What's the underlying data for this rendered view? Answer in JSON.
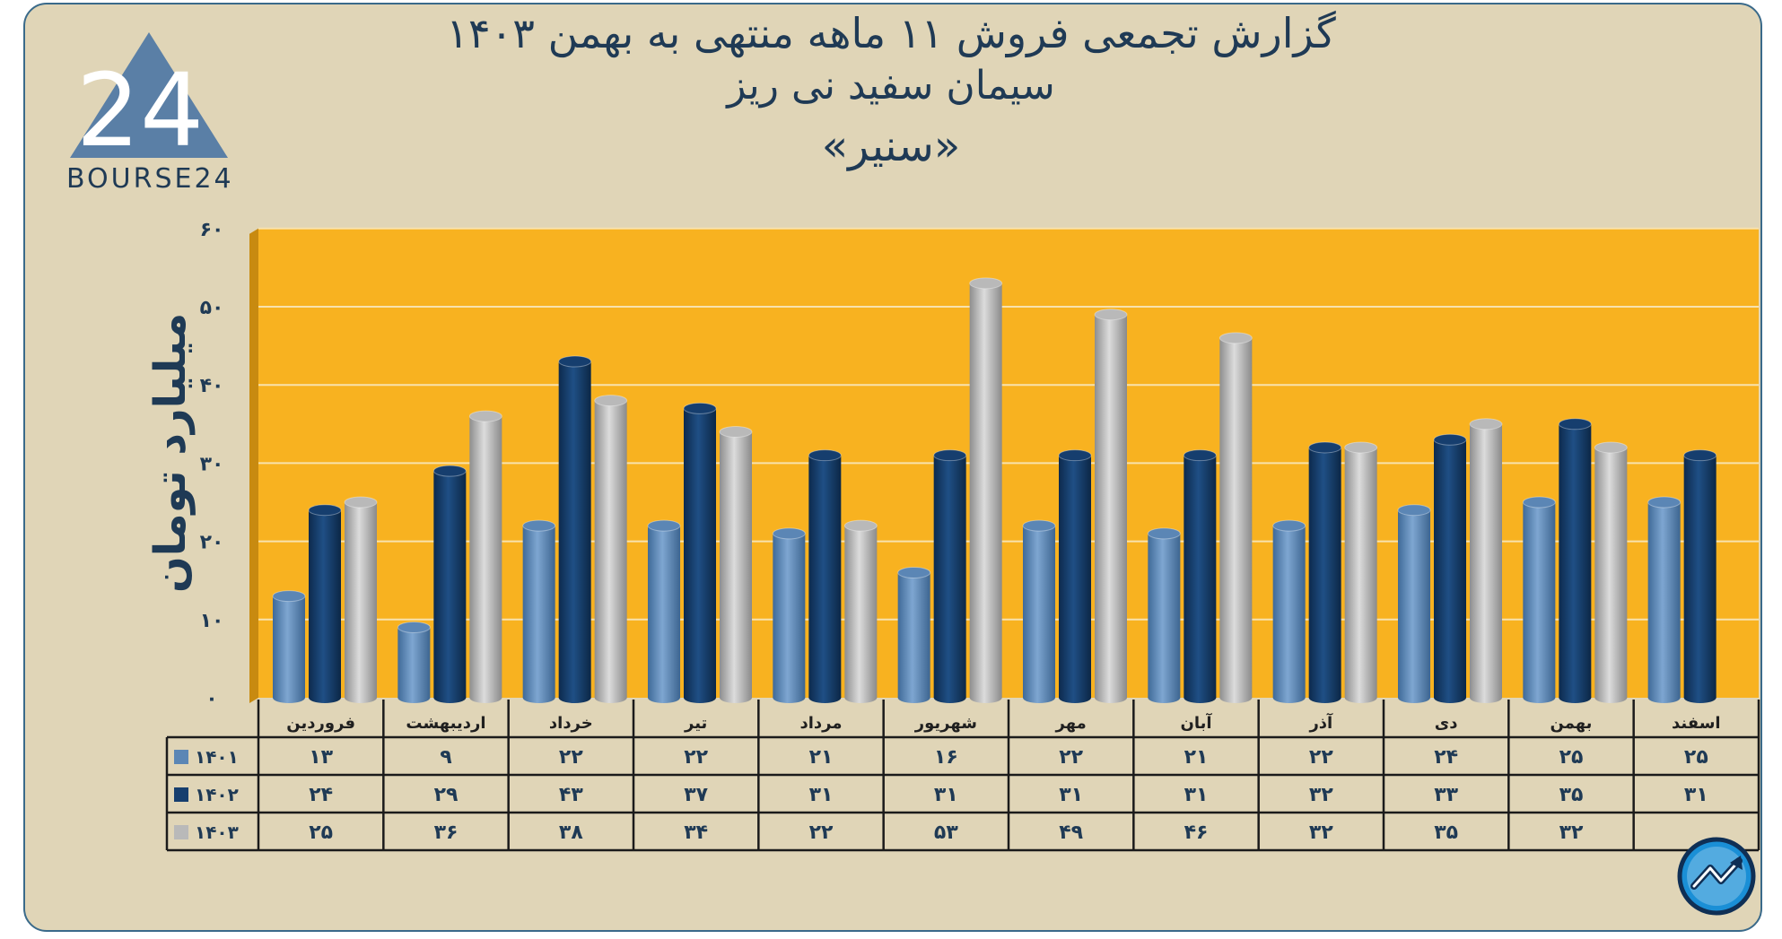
{
  "title": {
    "line1": "گزارش تجمعی فروش ۱۱ ماهه منتهی به بهمن ۱۴۰۳",
    "line2": "سیمان سفید نی ریز",
    "line3": "«سنیر»"
  },
  "logo": {
    "text": "BOURSE24",
    "mark": "24"
  },
  "chart_data": {
    "type": "bar",
    "ylabel": "میلیارد تومان",
    "ylim": [
      0,
      60
    ],
    "yticks": [
      0,
      10,
      20,
      30,
      40,
      50,
      60
    ],
    "ytick_labels": [
      "۰",
      "۱۰",
      "۲۰",
      "۳۰",
      "۴۰",
      "۵۰",
      "۶۰"
    ],
    "categories": [
      "فروردین",
      "اردیبهشت",
      "خرداد",
      "تیر",
      "مرداد",
      "شهریور",
      "مهر",
      "آبان",
      "آذر",
      "دی",
      "بهمن",
      "اسفند"
    ],
    "series": [
      {
        "name": "۱۴۰۱",
        "color": "#5b86b5",
        "values": [
          13,
          9,
          22,
          22,
          21,
          16,
          22,
          21,
          22,
          24,
          25,
          25
        ],
        "labels": [
          "۱۳",
          "۹",
          "۲۲",
          "۲۲",
          "۲۱",
          "۱۶",
          "۲۲",
          "۲۱",
          "۲۲",
          "۲۴",
          "۲۵",
          "۲۵"
        ]
      },
      {
        "name": "۱۴۰۲",
        "color": "#163e6e",
        "values": [
          24,
          29,
          43,
          37,
          31,
          31,
          31,
          31,
          32,
          33,
          35,
          31
        ],
        "labels": [
          "۲۴",
          "۲۹",
          "۴۳",
          "۳۷",
          "۳۱",
          "۳۱",
          "۳۱",
          "۳۱",
          "۳۲",
          "۳۳",
          "۳۵",
          "۳۱"
        ]
      },
      {
        "name": "۱۴۰۳",
        "color": "#b9b9b9",
        "values": [
          25,
          36,
          38,
          34,
          22,
          53,
          49,
          46,
          32,
          35,
          32,
          null
        ],
        "labels": [
          "۲۵",
          "۳۶",
          "۳۸",
          "۳۴",
          "۲۲",
          "۵۳",
          "۴۹",
          "۴۶",
          "۳۲",
          "۳۵",
          "۳۲",
          ""
        ]
      }
    ],
    "grid": true,
    "legend": "data-table-left",
    "plot_background": "#f8b220"
  }
}
